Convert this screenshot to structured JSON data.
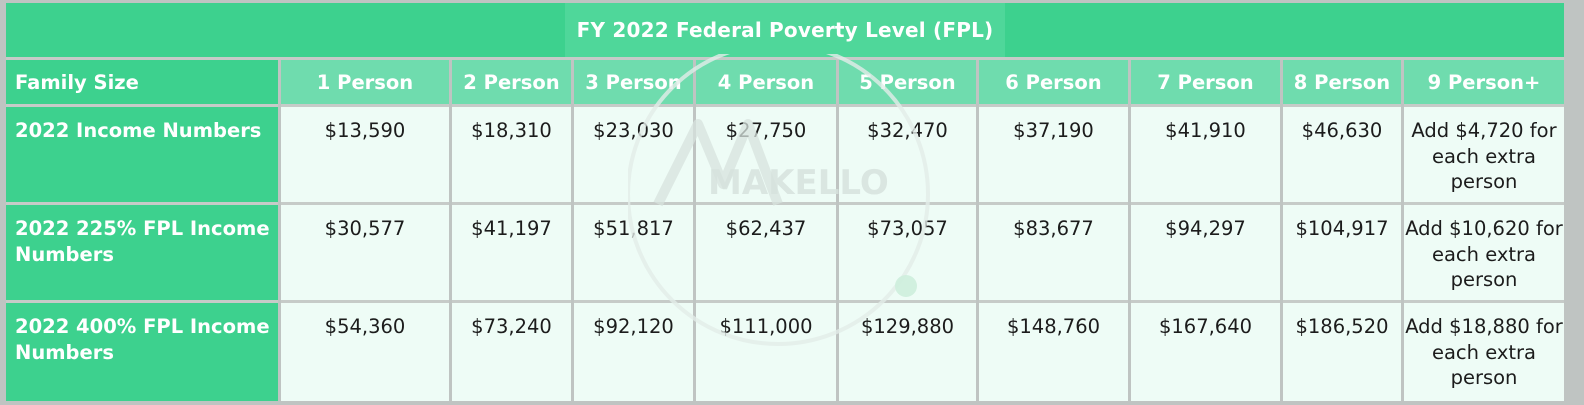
{
  "title": "FY 2022 Federal Poverty Level (FPL)",
  "header": {
    "label": "Family Size",
    "columns": [
      "1 Person",
      "2 Person",
      "3 Person",
      "4 Person",
      "5 Person",
      "6 Person",
      "7 Person",
      "8 Person",
      "9 Person+"
    ]
  },
  "rows": [
    {
      "label": "2022 Income Numbers",
      "values": [
        "$13,590",
        "$18,310",
        "$23,030",
        "$27,750",
        "$32,470",
        "$37,190",
        "$41,910",
        "$46,630",
        "Add $4,720 for each extra person"
      ]
    },
    {
      "label": "2022 225% FPL Income Numbers",
      "values": [
        "$30,577",
        "$41,197",
        "$51,817",
        "$62,437",
        "$73,057",
        "$83,677",
        "$94,297",
        "$104,917",
        "Add $10,620 for each extra person"
      ]
    },
    {
      "label": "2022 400% FPL Income Numbers",
      "values": [
        "$54,360",
        "$73,240",
        "$92,120",
        "$111,000",
        "$129,880",
        "$148,760",
        "$167,640",
        "$186,520",
        "Add $18,880 for each extra person"
      ]
    }
  ],
  "watermark": {
    "text": "MAKELLO",
    "color": "#d7e3de"
  },
  "colors": {
    "accent": "#3dd18e",
    "header": "#6fdcae",
    "cell_bg": "#eefcf6",
    "border": "#c6cbc8"
  }
}
